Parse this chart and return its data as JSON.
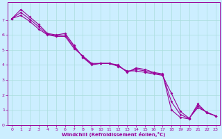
{
  "xlabel": "Windchill (Refroidissement éolien,°C)",
  "background_color": "#cceeff",
  "line_color": "#990099",
  "xlim": [
    -0.5,
    23.5
  ],
  "ylim": [
    0,
    8.2
  ],
  "xticks": [
    0,
    1,
    2,
    3,
    4,
    5,
    6,
    7,
    8,
    9,
    10,
    11,
    12,
    13,
    14,
    15,
    16,
    17,
    18,
    19,
    20,
    21,
    22,
    23
  ],
  "yticks": [
    0,
    1,
    2,
    3,
    4,
    5,
    6,
    7
  ],
  "grid_color": "#aadddd",
  "series1": [
    7.1,
    7.7,
    7.2,
    6.7,
    6.1,
    6.0,
    6.1,
    5.3,
    4.5,
    4.0,
    4.1,
    4.1,
    4.0,
    3.5,
    3.8,
    3.7,
    3.5,
    3.4,
    1.0,
    0.5,
    0.4,
    1.4,
    0.8,
    0.6
  ],
  "series2": [
    7.1,
    7.3,
    6.9,
    6.4,
    6.0,
    5.9,
    5.9,
    5.1,
    4.6,
    4.1,
    4.1,
    4.1,
    3.9,
    3.6,
    3.6,
    3.5,
    3.4,
    3.3,
    2.1,
    0.9,
    0.45,
    1.15,
    0.85,
    0.6
  ],
  "series3": [
    7.1,
    7.5,
    7.05,
    6.55,
    6.05,
    5.95,
    6.0,
    5.2,
    4.55,
    4.05,
    4.1,
    4.1,
    3.95,
    3.55,
    3.7,
    3.6,
    3.45,
    3.35,
    1.55,
    0.7,
    0.42,
    1.27,
    0.82,
    0.6
  ]
}
